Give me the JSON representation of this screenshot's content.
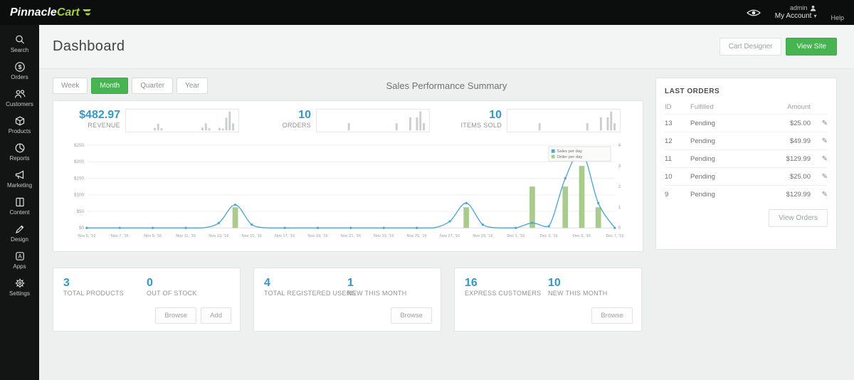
{
  "topbar": {
    "logo_part1": "Pinnacle",
    "logo_part2": "Cart",
    "admin_label": "admin",
    "my_account_label": "My Account",
    "help_label": "Help"
  },
  "icons": {
    "edit": "✎",
    "caret_down": "▾"
  },
  "sidebar": {
    "items": [
      {
        "label": "Search"
      },
      {
        "label": "Orders"
      },
      {
        "label": "Customers"
      },
      {
        "label": "Products"
      },
      {
        "label": "Reports"
      },
      {
        "label": "Marketing"
      },
      {
        "label": "Content"
      },
      {
        "label": "Design"
      },
      {
        "label": "Apps"
      },
      {
        "label": "Settings"
      }
    ]
  },
  "header": {
    "title": "Dashboard",
    "cart_designer_label": "Cart Designer",
    "view_site_label": "View Site"
  },
  "tabs": [
    {
      "label": "Week",
      "active": false
    },
    {
      "label": "Month",
      "active": true
    },
    {
      "label": "Quarter",
      "active": false
    },
    {
      "label": "Year",
      "active": false
    }
  ],
  "summary_title": "Sales Performance Summary",
  "stats": [
    {
      "value": "$482.97",
      "label": "REVENUE",
      "sparkline": "sales"
    },
    {
      "value": "10",
      "label": "ORDERS",
      "sparkline": "orders"
    },
    {
      "value": "10",
      "label": "ITEMS SOLD",
      "sparkline": "orders"
    }
  ],
  "chart_data": {
    "type": "line+bar",
    "title": "Sales Performance Summary",
    "x_tick_labels": [
      "Nov 5, '16",
      "Nov 7, '16",
      "Nov 9, '16",
      "Nov 11, '16",
      "Nov 13, '16",
      "Nov 15, '16",
      "Nov 17, '16",
      "Nov 19, '16",
      "Nov 21, '16",
      "Nov 23, '16",
      "Nov 25, '16",
      "Nov 27, '16",
      "Nov 29, '16",
      "Dec 1, '16",
      "Dec 3, '16",
      "Dec 5, '16",
      "Dec 7, '16"
    ],
    "series": [
      {
        "name": "Sales per day",
        "type": "line",
        "axis": "left",
        "color": "#4da6d8",
        "values": [
          0,
          0,
          0,
          0,
          0,
          0,
          0,
          0,
          15,
          70,
          10,
          0,
          0,
          0,
          0,
          0,
          0,
          0,
          0,
          0,
          0,
          0,
          20,
          75,
          10,
          0,
          0,
          15,
          5,
          150,
          230,
          75,
          0
        ]
      },
      {
        "name": "Order per day",
        "type": "bar",
        "axis": "right",
        "color": "#a9cb8d",
        "values": [
          0,
          0,
          0,
          0,
          0,
          0,
          0,
          0,
          0,
          1,
          0,
          0,
          0,
          0,
          0,
          0,
          0,
          0,
          0,
          0,
          0,
          0,
          0,
          1,
          0,
          0,
          0,
          2,
          0,
          2,
          3,
          1,
          0
        ]
      }
    ],
    "left_axis": {
      "min": 0,
      "max": 250,
      "ticks": [
        "$0",
        "$50",
        "$100",
        "$150",
        "$200",
        "$250"
      ]
    },
    "right_axis": {
      "min": 0,
      "max": 4,
      "ticks": [
        "0",
        "1",
        "2",
        "3",
        "4"
      ]
    },
    "legend": {
      "position": "top-right",
      "entries": [
        "Sales per day",
        "Order per day"
      ]
    },
    "grid": true
  },
  "last_orders": {
    "title": "LAST ORDERS",
    "columns": [
      "ID",
      "Fulfilled",
      "Amount"
    ],
    "rows": [
      {
        "id": "13",
        "fulfilled": "Pending",
        "amount": "$25.00"
      },
      {
        "id": "12",
        "fulfilled": "Pending",
        "amount": "$49.99"
      },
      {
        "id": "11",
        "fulfilled": "Pending",
        "amount": "$129.99"
      },
      {
        "id": "10",
        "fulfilled": "Pending",
        "amount": "$25.00"
      },
      {
        "id": "9",
        "fulfilled": "Pending",
        "amount": "$129.99"
      }
    ],
    "view_orders_label": "View Orders"
  },
  "cards": [
    {
      "stats": [
        {
          "value": "3",
          "label": "TOTAL PRODUCTS"
        },
        {
          "value": "0",
          "label": "OUT OF STOCK"
        }
      ],
      "buttons": [
        "Browse",
        "Add"
      ]
    },
    {
      "stats": [
        {
          "value": "4",
          "label": "TOTAL REGISTERED USERS"
        },
        {
          "value": "1",
          "label": "NEW THIS MONTH"
        }
      ],
      "buttons": [
        "Browse"
      ]
    },
    {
      "stats": [
        {
          "value": "16",
          "label": "EXPRESS CUSTOMERS"
        },
        {
          "value": "10",
          "label": "NEW THIS MONTH"
        }
      ],
      "buttons": [
        "Browse"
      ]
    }
  ],
  "colors": {
    "accent_green": "#46b450",
    "logo_green": "#a6ce39",
    "stat_blue": "#3398cc",
    "bar_green": "#a9cb8d",
    "line_blue": "#4da6d8",
    "topbar_bg": "#0c0d0d",
    "sidebar_bg": "#131514",
    "page_bg": "#eef0ef"
  }
}
